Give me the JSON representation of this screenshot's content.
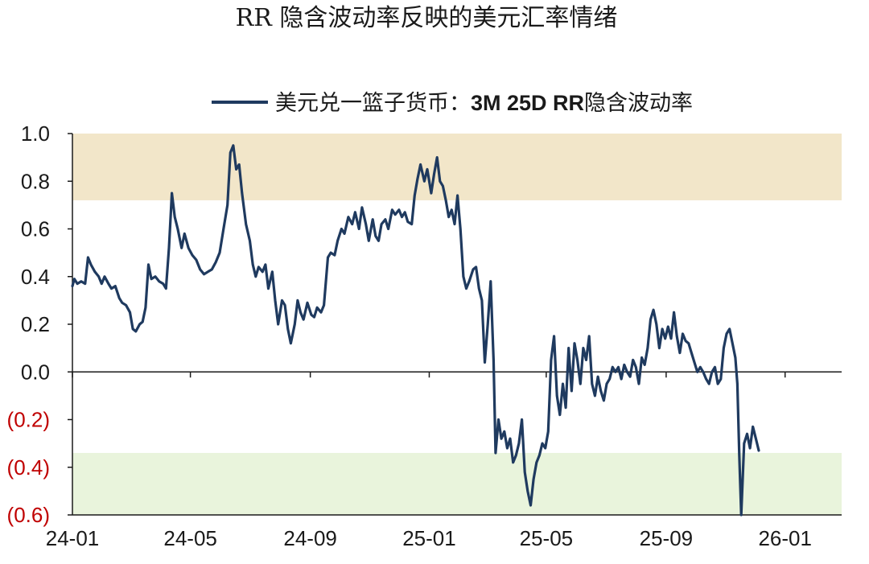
{
  "chart_data": {
    "type": "line",
    "title": "RR 隐含波动率反映的美元汇率情绪",
    "legend": {
      "placement": "top",
      "entries": [
        {
          "prefix": "美元兑一篮子货币：",
          "bold": "3M 25D RR",
          "suffix": "隐含波动率"
        }
      ]
    },
    "ylim": [
      -0.6,
      1.0
    ],
    "yticks": [
      {
        "value": 1.0,
        "label": "1.0",
        "color": "#1a1a1a"
      },
      {
        "value": 0.8,
        "label": "0.8",
        "color": "#1a1a1a"
      },
      {
        "value": 0.6,
        "label": "0.6",
        "color": "#1a1a1a"
      },
      {
        "value": 0.4,
        "label": "0.4",
        "color": "#1a1a1a"
      },
      {
        "value": 0.2,
        "label": "0.2",
        "color": "#1a1a1a"
      },
      {
        "value": 0.0,
        "label": "0.0",
        "color": "#1a1a1a"
      },
      {
        "value": -0.2,
        "label": "(0.2)",
        "color": "#c00000"
      },
      {
        "value": -0.4,
        "label": "(0.4)",
        "color": "#c00000"
      },
      {
        "value": -0.6,
        "label": "(0.6)",
        "color": "#c00000"
      }
    ],
    "xlim": [
      "2024-01-01",
      "2026-02-28"
    ],
    "xticks": [
      {
        "date": "2024-01-01",
        "label": "24-01"
      },
      {
        "date": "2024-05-01",
        "label": "24-05"
      },
      {
        "date": "2024-09-01",
        "label": "24-09"
      },
      {
        "date": "2025-01-01",
        "label": "25-01"
      },
      {
        "date": "2025-05-01",
        "label": "25-05"
      },
      {
        "date": "2025-09-01",
        "label": "25-09"
      },
      {
        "date": "2026-01-01",
        "label": "26-01"
      }
    ],
    "bands": [
      {
        "y0": 0.72,
        "y1": 1.0,
        "color": "#f2e6c9"
      },
      {
        "y0": -0.63,
        "y1": -0.34,
        "color": "#e9f4dc"
      }
    ],
    "zero_line": true,
    "grid": false,
    "colors": {
      "line": "#1f3a5f",
      "axis": "#1a1a1a",
      "negative_tick": "#c00000"
    },
    "series": [
      {
        "name": "美元兑一篮子货币：3M 25D RR隐含波动率",
        "points": [
          [
            "2024-01-01",
            0.36
          ],
          [
            "2024-01-03",
            0.39
          ],
          [
            "2024-01-06",
            0.37
          ],
          [
            "2024-01-10",
            0.38
          ],
          [
            "2024-01-14",
            0.37
          ],
          [
            "2024-01-17",
            0.48
          ],
          [
            "2024-01-20",
            0.45
          ],
          [
            "2024-01-24",
            0.42
          ],
          [
            "2024-01-28",
            0.4
          ],
          [
            "2024-01-31",
            0.37
          ],
          [
            "2024-02-03",
            0.4
          ],
          [
            "2024-02-07",
            0.37
          ],
          [
            "2024-02-10",
            0.35
          ],
          [
            "2024-02-14",
            0.36
          ],
          [
            "2024-02-18",
            0.31
          ],
          [
            "2024-02-21",
            0.29
          ],
          [
            "2024-02-25",
            0.28
          ],
          [
            "2024-02-29",
            0.25
          ],
          [
            "2024-03-03",
            0.18
          ],
          [
            "2024-03-06",
            0.17
          ],
          [
            "2024-03-10",
            0.2
          ],
          [
            "2024-03-13",
            0.21
          ],
          [
            "2024-03-16",
            0.27
          ],
          [
            "2024-03-19",
            0.45
          ],
          [
            "2024-03-22",
            0.39
          ],
          [
            "2024-03-26",
            0.4
          ],
          [
            "2024-03-30",
            0.38
          ],
          [
            "2024-04-03",
            0.37
          ],
          [
            "2024-04-06",
            0.35
          ],
          [
            "2024-04-09",
            0.52
          ],
          [
            "2024-04-12",
            0.75
          ],
          [
            "2024-04-15",
            0.65
          ],
          [
            "2024-04-18",
            0.6
          ],
          [
            "2024-04-22",
            0.52
          ],
          [
            "2024-04-25",
            0.58
          ],
          [
            "2024-04-29",
            0.52
          ],
          [
            "2024-05-03",
            0.49
          ],
          [
            "2024-05-07",
            0.47
          ],
          [
            "2024-05-11",
            0.43
          ],
          [
            "2024-05-15",
            0.41
          ],
          [
            "2024-05-19",
            0.42
          ],
          [
            "2024-05-23",
            0.43
          ],
          [
            "2024-05-27",
            0.46
          ],
          [
            "2024-05-31",
            0.5
          ],
          [
            "2024-06-04",
            0.6
          ],
          [
            "2024-06-08",
            0.7
          ],
          [
            "2024-06-11",
            0.92
          ],
          [
            "2024-06-14",
            0.95
          ],
          [
            "2024-06-17",
            0.85
          ],
          [
            "2024-06-20",
            0.87
          ],
          [
            "2024-06-23",
            0.75
          ],
          [
            "2024-06-27",
            0.62
          ],
          [
            "2024-07-01",
            0.55
          ],
          [
            "2024-07-04",
            0.45
          ],
          [
            "2024-07-07",
            0.4
          ],
          [
            "2024-07-10",
            0.44
          ],
          [
            "2024-07-14",
            0.42
          ],
          [
            "2024-07-17",
            0.45
          ],
          [
            "2024-07-20",
            0.35
          ],
          [
            "2024-07-24",
            0.42
          ],
          [
            "2024-07-27",
            0.3
          ],
          [
            "2024-07-30",
            0.2
          ],
          [
            "2024-08-03",
            0.3
          ],
          [
            "2024-08-06",
            0.28
          ],
          [
            "2024-08-09",
            0.18
          ],
          [
            "2024-08-12",
            0.12
          ],
          [
            "2024-08-16",
            0.2
          ],
          [
            "2024-08-19",
            0.3
          ],
          [
            "2024-08-22",
            0.25
          ],
          [
            "2024-08-25",
            0.22
          ],
          [
            "2024-08-29",
            0.29
          ],
          [
            "2024-09-02",
            0.24
          ],
          [
            "2024-09-05",
            0.23
          ],
          [
            "2024-09-08",
            0.27
          ],
          [
            "2024-09-12",
            0.25
          ],
          [
            "2024-09-15",
            0.28
          ],
          [
            "2024-09-19",
            0.48
          ],
          [
            "2024-09-22",
            0.5
          ],
          [
            "2024-09-26",
            0.49
          ],
          [
            "2024-09-29",
            0.55
          ],
          [
            "2024-10-03",
            0.6
          ],
          [
            "2024-10-06",
            0.58
          ],
          [
            "2024-10-10",
            0.65
          ],
          [
            "2024-10-14",
            0.62
          ],
          [
            "2024-10-17",
            0.67
          ],
          [
            "2024-10-21",
            0.6
          ],
          [
            "2024-10-24",
            0.69
          ],
          [
            "2024-10-28",
            0.62
          ],
          [
            "2024-10-31",
            0.55
          ],
          [
            "2024-11-04",
            0.64
          ],
          [
            "2024-11-07",
            0.57
          ],
          [
            "2024-11-10",
            0.55
          ],
          [
            "2024-11-13",
            0.62
          ],
          [
            "2024-11-17",
            0.64
          ],
          [
            "2024-11-20",
            0.6
          ],
          [
            "2024-11-24",
            0.68
          ],
          [
            "2024-11-27",
            0.66
          ],
          [
            "2024-12-01",
            0.68
          ],
          [
            "2024-12-04",
            0.65
          ],
          [
            "2024-12-07",
            0.67
          ],
          [
            "2024-12-10",
            0.63
          ],
          [
            "2024-12-14",
            0.62
          ],
          [
            "2024-12-17",
            0.74
          ],
          [
            "2024-12-20",
            0.81
          ],
          [
            "2024-12-23",
            0.87
          ],
          [
            "2024-12-27",
            0.8
          ],
          [
            "2024-12-30",
            0.85
          ],
          [
            "2025-01-03",
            0.75
          ],
          [
            "2025-01-06",
            0.83
          ],
          [
            "2025-01-09",
            0.9
          ],
          [
            "2025-01-12",
            0.8
          ],
          [
            "2025-01-15",
            0.78
          ],
          [
            "2025-01-18",
            0.72
          ],
          [
            "2025-01-21",
            0.65
          ],
          [
            "2025-01-24",
            0.68
          ],
          [
            "2025-01-27",
            0.62
          ],
          [
            "2025-01-30",
            0.74
          ],
          [
            "2025-02-02",
            0.6
          ],
          [
            "2025-02-05",
            0.4
          ],
          [
            "2025-02-08",
            0.35
          ],
          [
            "2025-02-11",
            0.38
          ],
          [
            "2025-02-15",
            0.43
          ],
          [
            "2025-02-18",
            0.44
          ],
          [
            "2025-02-21",
            0.35
          ],
          [
            "2025-02-24",
            0.3
          ],
          [
            "2025-02-27",
            0.04
          ],
          [
            "2025-03-02",
            0.2
          ],
          [
            "2025-03-05",
            0.38
          ],
          [
            "2025-03-08",
            0.05
          ],
          [
            "2025-03-10",
            -0.34
          ],
          [
            "2025-03-13",
            -0.2
          ],
          [
            "2025-03-16",
            -0.28
          ],
          [
            "2025-03-19",
            -0.25
          ],
          [
            "2025-03-22",
            -0.32
          ],
          [
            "2025-03-25",
            -0.28
          ],
          [
            "2025-03-28",
            -0.38
          ],
          [
            "2025-03-31",
            -0.35
          ],
          [
            "2025-04-03",
            -0.3
          ],
          [
            "2025-04-06",
            -0.2
          ],
          [
            "2025-04-09",
            -0.42
          ],
          [
            "2025-04-12",
            -0.5
          ],
          [
            "2025-04-15",
            -0.56
          ],
          [
            "2025-04-18",
            -0.45
          ],
          [
            "2025-04-21",
            -0.38
          ],
          [
            "2025-04-24",
            -0.35
          ],
          [
            "2025-04-27",
            -0.3
          ],
          [
            "2025-04-30",
            -0.32
          ],
          [
            "2025-05-03",
            -0.25
          ],
          [
            "2025-05-06",
            0.05
          ],
          [
            "2025-05-09",
            0.15
          ],
          [
            "2025-05-12",
            -0.1
          ],
          [
            "2025-05-15",
            -0.18
          ],
          [
            "2025-05-18",
            -0.05
          ],
          [
            "2025-05-21",
            -0.15
          ],
          [
            "2025-05-24",
            0.1
          ],
          [
            "2025-05-27",
            -0.08
          ],
          [
            "2025-05-30",
            0.12
          ],
          [
            "2025-06-02",
            0.05
          ],
          [
            "2025-06-05",
            -0.05
          ],
          [
            "2025-06-08",
            0.1
          ],
          [
            "2025-06-11",
            0.05
          ],
          [
            "2025-06-14",
            0.15
          ],
          [
            "2025-06-17",
            -0.05
          ],
          [
            "2025-06-20",
            -0.1
          ],
          [
            "2025-06-23",
            -0.02
          ],
          [
            "2025-06-26",
            -0.08
          ],
          [
            "2025-06-29",
            -0.12
          ],
          [
            "2025-07-02",
            -0.05
          ],
          [
            "2025-07-05",
            -0.03
          ],
          [
            "2025-07-08",
            0.02
          ],
          [
            "2025-07-11",
            0.0
          ],
          [
            "2025-07-14",
            0.02
          ],
          [
            "2025-07-17",
            -0.03
          ],
          [
            "2025-07-20",
            0.03
          ],
          [
            "2025-07-23",
            0.0
          ],
          [
            "2025-07-26",
            -0.02
          ],
          [
            "2025-07-29",
            0.05
          ],
          [
            "2025-08-01",
            0.02
          ],
          [
            "2025-08-04",
            -0.05
          ],
          [
            "2025-08-07",
            0.06
          ],
          [
            "2025-08-10",
            0.03
          ],
          [
            "2025-08-13",
            0.1
          ],
          [
            "2025-08-16",
            0.22
          ],
          [
            "2025-08-19",
            0.26
          ],
          [
            "2025-08-22",
            0.2
          ],
          [
            "2025-08-25",
            0.1
          ],
          [
            "2025-08-28",
            0.18
          ],
          [
            "2025-08-31",
            0.14
          ],
          [
            "2025-09-03",
            0.19
          ],
          [
            "2025-09-06",
            0.14
          ],
          [
            "2025-09-09",
            0.25
          ],
          [
            "2025-09-12",
            0.15
          ],
          [
            "2025-09-15",
            0.08
          ],
          [
            "2025-09-18",
            0.16
          ],
          [
            "2025-09-21",
            0.13
          ],
          [
            "2025-09-24",
            0.12
          ],
          [
            "2025-09-27",
            0.08
          ],
          [
            "2025-09-30",
            0.04
          ],
          [
            "2025-10-03",
            0.0
          ],
          [
            "2025-10-06",
            0.02
          ],
          [
            "2025-10-09",
            0.0
          ],
          [
            "2025-10-12",
            -0.03
          ],
          [
            "2025-10-15",
            -0.05
          ],
          [
            "2025-10-18",
            0.0
          ],
          [
            "2025-10-21",
            0.02
          ],
          [
            "2025-10-24",
            -0.05
          ],
          [
            "2025-10-27",
            -0.03
          ],
          [
            "2025-10-30",
            0.1
          ],
          [
            "2025-11-02",
            0.16
          ],
          [
            "2025-11-05",
            0.18
          ],
          [
            "2025-11-08",
            0.12
          ],
          [
            "2025-11-11",
            0.06
          ],
          [
            "2025-11-13",
            -0.05
          ],
          [
            "2025-11-15",
            -0.35
          ],
          [
            "2025-11-17",
            -0.6
          ],
          [
            "2025-11-20",
            -0.3
          ],
          [
            "2025-11-23",
            -0.26
          ],
          [
            "2025-11-26",
            -0.32
          ],
          [
            "2025-11-29",
            -0.23
          ],
          [
            "2025-12-02",
            -0.28
          ],
          [
            "2025-12-05",
            -0.33
          ]
        ]
      }
    ]
  }
}
